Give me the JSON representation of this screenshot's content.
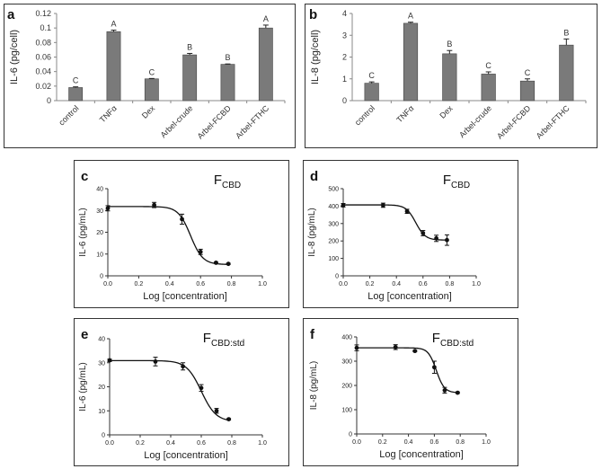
{
  "chart_data": [
    {
      "id": "a",
      "panel_label": "a",
      "type": "bar",
      "title": "",
      "ylabel": "IL-6 (pg/cell)",
      "xlabel": "",
      "categories": [
        "control",
        "TNFα",
        "Dex",
        "Arbel-crude",
        "Arbel-FCBD",
        "Arbel-FTHC"
      ],
      "values": [
        0.018,
        0.095,
        0.03,
        0.063,
        0.05,
        0.1
      ],
      "errors": [
        0.001,
        0.002,
        0.0005,
        0.002,
        0.0005,
        0.004
      ],
      "letters": [
        "C",
        "A",
        "C",
        "B",
        "B",
        "A"
      ],
      "ylim": [
        0,
        0.12
      ],
      "yticks": [
        0,
        0.02,
        0.04,
        0.06,
        0.08,
        0.1,
        0.12
      ],
      "ytick_labels": [
        "0",
        "0.02",
        "0.04",
        "0.06",
        "0.08",
        "0.1",
        "0.12"
      ],
      "bar_color": "#7a7a7a"
    },
    {
      "id": "b",
      "panel_label": "b",
      "type": "bar",
      "title": "",
      "ylabel": "IL-8 (pg/cell)",
      "xlabel": "",
      "categories": [
        "control",
        "TNFα",
        "Dex",
        "Arbel-crude",
        "Arbel-FCBD",
        "Arbel-FTHC"
      ],
      "values": [
        0.8,
        3.55,
        2.15,
        1.22,
        0.9,
        2.55
      ],
      "errors": [
        0.06,
        0.05,
        0.15,
        0.1,
        0.1,
        0.28
      ],
      "letters": [
        "C",
        "A",
        "B",
        "C",
        "C",
        "B"
      ],
      "ylim": [
        0,
        4
      ],
      "yticks": [
        0,
        1,
        2,
        3,
        4
      ],
      "ytick_labels": [
        "0",
        "1",
        "2",
        "3",
        "4"
      ],
      "bar_color": "#7a7a7a"
    },
    {
      "id": "c",
      "panel_label": "c",
      "type": "scatter",
      "title_main": "F",
      "title_sub": "CBD",
      "ylabel": "IL-6 (pg/mL)",
      "xlabel": "Log [concentration]",
      "x": [
        0.0,
        0.3,
        0.48,
        0.6,
        0.7,
        0.78
      ],
      "y": [
        31,
        32.5,
        26,
        11,
        6,
        5.5
      ],
      "errors": [
        1.2,
        1.2,
        2.3,
        1.2,
        0.3,
        0.3
      ],
      "curve": {
        "top": 31.8,
        "bottom": 5.2,
        "ec50": 0.535,
        "hill": 11
      },
      "xlim": [
        0,
        1
      ],
      "ylim": [
        0,
        40
      ],
      "xticks": [
        0,
        0.2,
        0.4,
        0.6,
        0.8,
        1.0
      ],
      "xtick_labels": [
        "0.0",
        "0.2",
        "0.4",
        "0.6",
        "0.8",
        "1.0"
      ],
      "yticks": [
        0,
        10,
        20,
        30,
        40
      ],
      "ytick_labels": [
        "0",
        "10",
        "20",
        "30",
        "40"
      ]
    },
    {
      "id": "d",
      "panel_label": "d",
      "type": "scatter",
      "title_main": "F",
      "title_sub": "CBD",
      "ylabel": "IL-8 (pg/mL)",
      "xlabel": "Log [concentration]",
      "x": [
        0.0,
        0.3,
        0.48,
        0.6,
        0.7,
        0.78
      ],
      "y": [
        405,
        405,
        370,
        245,
        215,
        205
      ],
      "errors": [
        10,
        12,
        12,
        15,
        18,
        30
      ],
      "curve": {
        "top": 407,
        "bottom": 205,
        "ec50": 0.545,
        "hill": 12
      },
      "xlim": [
        0,
        1
      ],
      "ylim": [
        0,
        500
      ],
      "xticks": [
        0,
        0.2,
        0.4,
        0.6,
        0.8,
        1.0
      ],
      "xtick_labels": [
        "0.0",
        "0.2",
        "0.4",
        "0.6",
        "0.8",
        "1.0"
      ],
      "yticks": [
        0,
        100,
        200,
        300,
        400,
        500
      ],
      "ytick_labels": [
        "0",
        "100",
        "200",
        "300",
        "400",
        "500"
      ]
    },
    {
      "id": "e",
      "panel_label": "e",
      "type": "scatter",
      "title_main": "F",
      "title_sub": "CBD:std",
      "ylabel": "IL-6 (pg/mL)",
      "xlabel": "Log [concentration]",
      "x": [
        0.0,
        0.3,
        0.48,
        0.6,
        0.7,
        0.78
      ],
      "y": [
        31,
        30.5,
        28.5,
        19.5,
        10,
        6.5
      ],
      "errors": [
        0.5,
        1.8,
        1.5,
        1.4,
        1.0,
        0.3
      ],
      "curve": {
        "top": 30.9,
        "bottom": 5.5,
        "ec50": 0.6,
        "hill": 9
      },
      "xlim": [
        0,
        1
      ],
      "ylim": [
        0,
        40
      ],
      "xticks": [
        0,
        0.2,
        0.4,
        0.6,
        0.8,
        1.0
      ],
      "xtick_labels": [
        "0.0",
        "0.2",
        "0.4",
        "0.6",
        "0.8",
        "1.0"
      ],
      "yticks": [
        0,
        10,
        20,
        30,
        40
      ],
      "ytick_labels": [
        "0",
        "10",
        "20",
        "30",
        "40"
      ]
    },
    {
      "id": "f",
      "panel_label": "f",
      "type": "scatter",
      "title_main": "F",
      "title_sub": "CBD:std",
      "ylabel": "IL-8 (pg/mL)",
      "xlabel": "Log [concentration]",
      "x": [
        0.0,
        0.3,
        0.45,
        0.6,
        0.68,
        0.78
      ],
      "y": [
        355,
        358,
        342,
        275,
        180,
        170
      ],
      "errors": [
        12,
        10,
        3,
        25,
        12,
        3
      ],
      "curve": {
        "top": 355,
        "bottom": 170,
        "ec50": 0.615,
        "hill": 14
      },
      "xlim": [
        0,
        1
      ],
      "ylim": [
        0,
        400
      ],
      "xticks": [
        0,
        0.2,
        0.4,
        0.6,
        0.8,
        1.0
      ],
      "xtick_labels": [
        "0.0",
        "0.2",
        "0.4",
        "0.6",
        "0.8",
        "1.0"
      ],
      "yticks": [
        0,
        100,
        200,
        300,
        400
      ],
      "ytick_labels": [
        "0",
        "100",
        "200",
        "300",
        "400"
      ]
    }
  ]
}
